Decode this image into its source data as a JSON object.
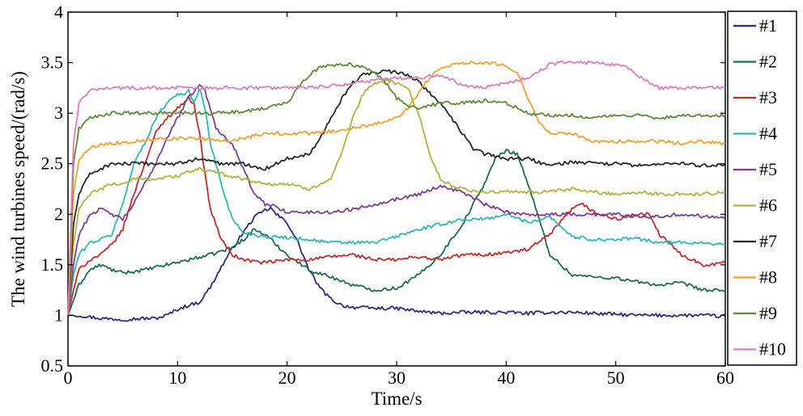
{
  "chart_data": {
    "type": "line",
    "title": "",
    "xlabel": "Time/s",
    "ylabel": "The wind turbines speed/(rad/s)",
    "xlim": [
      0,
      60
    ],
    "ylim": [
      0.5,
      4
    ],
    "xticks": [
      0,
      10,
      20,
      30,
      40,
      50,
      60
    ],
    "yticks": [
      0.5,
      1,
      1.5,
      2,
      2.5,
      3,
      3.5,
      4
    ],
    "ytick_labels": [
      "0.5",
      "1",
      "1.5",
      "2",
      "2.5",
      "3",
      "3.5",
      "4"
    ],
    "grid": false,
    "legend": {
      "position": "right"
    },
    "series": [
      {
        "name": "#1",
        "color": "#2b2b7f",
        "x": [
          0,
          1,
          3,
          5,
          7,
          8,
          9,
          10,
          11,
          12,
          13,
          14,
          15,
          16,
          17,
          18,
          18.5,
          19,
          20,
          21,
          22,
          23,
          24,
          25,
          26,
          28,
          30,
          32,
          34,
          36,
          38,
          40,
          42,
          44,
          46,
          48,
          50,
          52,
          54,
          56,
          58,
          60
        ],
        "y": [
          1.0,
          1.0,
          0.97,
          0.96,
          0.97,
          0.97,
          1.0,
          1.06,
          1.1,
          1.13,
          1.28,
          1.48,
          1.66,
          1.82,
          1.97,
          2.04,
          2.06,
          2.0,
          1.92,
          1.72,
          1.45,
          1.27,
          1.16,
          1.1,
          1.08,
          1.07,
          1.07,
          1.04,
          1.02,
          1.03,
          1.03,
          1.03,
          1.02,
          1.03,
          1.03,
          1.02,
          1.01,
          1.0,
          1.0,
          1.0,
          1.0,
          0.99
        ]
      },
      {
        "name": "#2",
        "color": "#1b6e48",
        "x": [
          0,
          1,
          2,
          3,
          4,
          5,
          7,
          9,
          11,
          13,
          15,
          16,
          17,
          18,
          19,
          20,
          22,
          24,
          26,
          28,
          30,
          32,
          34,
          36,
          38,
          39,
          40,
          41,
          42,
          43,
          44,
          46,
          48,
          50,
          52,
          54,
          56,
          58,
          60
        ],
        "y": [
          1.0,
          1.3,
          1.45,
          1.5,
          1.45,
          1.42,
          1.45,
          1.5,
          1.55,
          1.6,
          1.67,
          1.75,
          1.85,
          1.8,
          1.7,
          1.6,
          1.45,
          1.38,
          1.3,
          1.25,
          1.27,
          1.4,
          1.6,
          1.9,
          2.3,
          2.55,
          2.63,
          2.6,
          2.3,
          1.95,
          1.6,
          1.4,
          1.38,
          1.37,
          1.33,
          1.3,
          1.32,
          1.25,
          1.24
        ]
      },
      {
        "name": "#3",
        "color": "#c42a2a",
        "x": [
          0,
          0.5,
          1,
          2,
          3,
          4,
          5,
          6,
          7,
          8,
          9,
          10,
          10.5,
          11,
          11.5,
          12,
          12.5,
          13,
          14,
          15,
          16,
          18,
          20,
          22,
          24,
          26,
          28,
          30,
          32,
          34,
          36,
          38,
          40,
          42,
          44,
          46,
          47,
          48,
          50,
          52,
          53,
          54,
          56,
          58,
          60
        ],
        "y": [
          1.0,
          1.25,
          1.45,
          1.55,
          1.6,
          1.7,
          1.85,
          2.2,
          2.5,
          2.8,
          2.95,
          3.05,
          3.1,
          3.15,
          3.1,
          2.8,
          2.4,
          2.05,
          1.75,
          1.6,
          1.55,
          1.52,
          1.55,
          1.55,
          1.58,
          1.6,
          1.55,
          1.55,
          1.58,
          1.55,
          1.6,
          1.6,
          1.62,
          1.65,
          1.8,
          2.05,
          2.1,
          2.02,
          1.95,
          2.0,
          2.0,
          1.8,
          1.6,
          1.5,
          1.52
        ]
      },
      {
        "name": "#4",
        "color": "#2eb7b3",
        "x": [
          0,
          0.5,
          1,
          2,
          3,
          4,
          5,
          6,
          7,
          8,
          9,
          10,
          10.5,
          11,
          11.5,
          12,
          12.5,
          13,
          14,
          15,
          16,
          18,
          20,
          22,
          24,
          26,
          28,
          30,
          32,
          34,
          36,
          38,
          40,
          42,
          44,
          46,
          48,
          50,
          52,
          54,
          56,
          58,
          60
        ],
        "y": [
          1.0,
          1.4,
          1.6,
          1.72,
          1.75,
          1.8,
          2.1,
          2.5,
          2.7,
          2.95,
          3.1,
          3.2,
          3.18,
          3.22,
          3.1,
          3.25,
          3.05,
          2.7,
          2.3,
          1.95,
          1.82,
          1.78,
          1.77,
          1.75,
          1.72,
          1.72,
          1.72,
          1.78,
          1.85,
          1.9,
          1.95,
          1.95,
          2.0,
          1.92,
          1.98,
          1.78,
          1.75,
          1.75,
          1.76,
          1.72,
          1.72,
          1.72,
          1.7
        ]
      },
      {
        "name": "#5",
        "color": "#7d3c98",
        "x": [
          0,
          0.5,
          1,
          2,
          3,
          4,
          5,
          6,
          7,
          8,
          9,
          10,
          11,
          11.5,
          12,
          12.5,
          13,
          13.5,
          14,
          15,
          16,
          17,
          18,
          19,
          20,
          22,
          24,
          26,
          28,
          30,
          32,
          34,
          36,
          38,
          40,
          42,
          44,
          46,
          48,
          50,
          52,
          54,
          56,
          58,
          60
        ],
        "y": [
          1.0,
          1.5,
          1.8,
          2.0,
          2.05,
          2.0,
          1.95,
          2.1,
          2.3,
          2.5,
          2.75,
          2.95,
          3.15,
          3.22,
          3.28,
          3.22,
          3.05,
          2.85,
          2.8,
          2.7,
          2.45,
          2.2,
          2.1,
          2.08,
          2.02,
          2.02,
          2.02,
          2.05,
          2.1,
          2.15,
          2.2,
          2.28,
          2.22,
          2.1,
          2.02,
          2.0,
          2.0,
          2.0,
          2.0,
          2.0,
          1.98,
          1.98,
          2.0,
          1.98,
          1.98
        ]
      },
      {
        "name": "#6",
        "color": "#b2b33c",
        "x": [
          0,
          0.5,
          1,
          2,
          3,
          4,
          5,
          6,
          8,
          10,
          12,
          14,
          16,
          18,
          20,
          22,
          24,
          25,
          26,
          27,
          28,
          29,
          30,
          31,
          32,
          33,
          34,
          35,
          36,
          38,
          40,
          42,
          44,
          46,
          48,
          50,
          52,
          54,
          56,
          58,
          60
        ],
        "y": [
          1.0,
          1.7,
          2.05,
          2.2,
          2.25,
          2.3,
          2.3,
          2.35,
          2.35,
          2.38,
          2.45,
          2.4,
          2.35,
          2.3,
          2.3,
          2.25,
          2.35,
          2.6,
          2.95,
          3.2,
          3.3,
          3.32,
          3.3,
          3.25,
          3.0,
          2.6,
          2.35,
          2.28,
          2.25,
          2.22,
          2.22,
          2.22,
          2.22,
          2.25,
          2.22,
          2.2,
          2.22,
          2.2,
          2.2,
          2.2,
          2.22
        ]
      },
      {
        "name": "#7",
        "color": "#262626",
        "x": [
          0,
          0.5,
          1,
          2,
          3,
          4,
          6,
          8,
          10,
          12,
          14,
          16,
          18,
          20,
          22,
          23,
          24,
          25,
          26,
          27,
          28,
          29,
          30,
          31,
          32,
          33,
          34,
          35,
          36,
          37,
          38,
          40,
          42,
          44,
          46,
          48,
          50,
          52,
          54,
          56,
          58,
          60
        ],
        "y": [
          1.0,
          1.9,
          2.2,
          2.4,
          2.45,
          2.5,
          2.5,
          2.5,
          2.5,
          2.55,
          2.5,
          2.5,
          2.45,
          2.55,
          2.6,
          2.75,
          2.95,
          3.15,
          3.3,
          3.38,
          3.4,
          3.42,
          3.4,
          3.38,
          3.32,
          3.2,
          3.1,
          2.95,
          2.8,
          2.65,
          2.6,
          2.55,
          2.55,
          2.48,
          2.52,
          2.5,
          2.5,
          2.48,
          2.5,
          2.5,
          2.48,
          2.5
        ]
      },
      {
        "name": "#8",
        "color": "#f0a030",
        "x": [
          0,
          0.5,
          1,
          2,
          3,
          4,
          6,
          8,
          10,
          12,
          14,
          16,
          18,
          20,
          22,
          24,
          26,
          28,
          30,
          31,
          32,
          33,
          34,
          35,
          36,
          38,
          40,
          41,
          42,
          43,
          44,
          46,
          48,
          50,
          52,
          54,
          56,
          58,
          60
        ],
        "y": [
          1.0,
          2.2,
          2.55,
          2.65,
          2.7,
          2.7,
          2.72,
          2.75,
          2.75,
          2.75,
          2.72,
          2.75,
          2.8,
          2.8,
          2.8,
          2.82,
          2.85,
          2.9,
          2.95,
          3.05,
          3.2,
          3.35,
          3.45,
          3.48,
          3.5,
          3.5,
          3.48,
          3.4,
          3.15,
          2.9,
          2.8,
          2.8,
          2.72,
          2.72,
          2.72,
          2.72,
          2.7,
          2.72,
          2.7
        ]
      },
      {
        "name": "#9",
        "color": "#5e8a36",
        "x": [
          0,
          0.5,
          1,
          2,
          3,
          4,
          6,
          8,
          10,
          12,
          14,
          16,
          18,
          20,
          21,
          22,
          23,
          24,
          25,
          26,
          27,
          28,
          29,
          30,
          31,
          32,
          34,
          36,
          38,
          40,
          41,
          42,
          44,
          46,
          48,
          50,
          52,
          54,
          56,
          58,
          60
        ],
        "y": [
          1.0,
          2.5,
          2.85,
          2.95,
          2.98,
          3.0,
          3.0,
          3.0,
          3.0,
          3.0,
          3.0,
          3.02,
          3.05,
          3.1,
          3.25,
          3.38,
          3.45,
          3.48,
          3.48,
          3.48,
          3.45,
          3.4,
          3.3,
          3.15,
          3.08,
          3.05,
          3.1,
          3.1,
          3.12,
          3.1,
          3.05,
          3.0,
          2.98,
          2.98,
          2.95,
          2.98,
          2.98,
          2.95,
          2.98,
          2.98,
          2.98
        ]
      },
      {
        "name": "#10",
        "color": "#e07bb8",
        "x": [
          0,
          0.5,
          1,
          2,
          3,
          4,
          6,
          8,
          10,
          12,
          14,
          16,
          18,
          20,
          22,
          24,
          26,
          28,
          30,
          32,
          34,
          36,
          38,
          40,
          42,
          43,
          44,
          45,
          46,
          48,
          50,
          51,
          52,
          53,
          54,
          56,
          58,
          60
        ],
        "y": [
          1.0,
          2.7,
          3.1,
          3.22,
          3.25,
          3.25,
          3.25,
          3.25,
          3.25,
          3.25,
          3.25,
          3.25,
          3.25,
          3.25,
          3.25,
          3.27,
          3.3,
          3.32,
          3.35,
          3.35,
          3.38,
          3.28,
          3.25,
          3.3,
          3.35,
          3.42,
          3.48,
          3.5,
          3.5,
          3.5,
          3.48,
          3.45,
          3.38,
          3.3,
          3.25,
          3.25,
          3.25,
          3.25
        ]
      }
    ]
  }
}
